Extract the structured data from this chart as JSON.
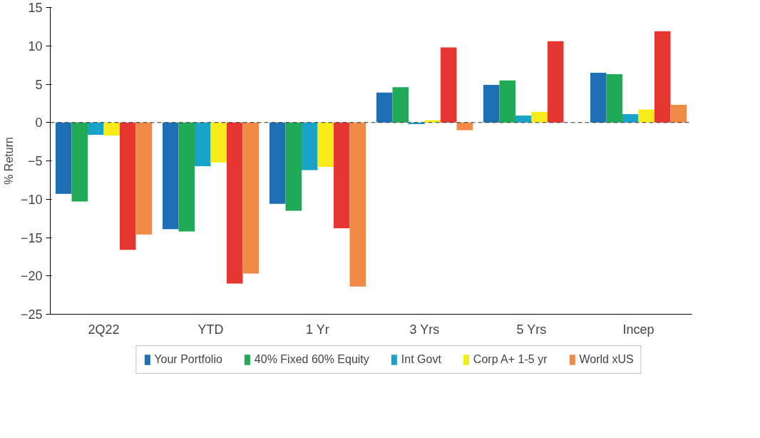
{
  "chart_data": {
    "type": "bar",
    "ylabel": "% Return",
    "categories": [
      "2Q22",
      "YTD",
      "1 Yr",
      "3 Yrs",
      "5 Yrs",
      "Incep"
    ],
    "series": [
      {
        "name": "Your Portfolio",
        "color": "#1f6fb5",
        "values": [
          -9.3,
          -13.9,
          -10.6,
          3.9,
          4.9,
          6.5
        ]
      },
      {
        "name": "40% Fixed 60% Equity",
        "color": "#20a956",
        "values": [
          -10.3,
          -14.2,
          -11.5,
          4.6,
          5.5,
          6.3
        ]
      },
      {
        "name": "Int Govt",
        "color": "#1aa3c8",
        "values": [
          -1.6,
          -5.7,
          -6.2,
          -0.2,
          0.9,
          1.1
        ]
      },
      {
        "name": "Corp A+ 1-5 yr",
        "color": "#f7ec1a",
        "values": [
          -1.7,
          -5.2,
          -5.8,
          0.3,
          1.4,
          1.7
        ]
      },
      {
        "color": "#e63632",
        "values": [
          -16.6,
          -21.0,
          -13.8,
          9.8,
          10.6,
          11.9
        ]
      },
      {
        "name": "World xUS",
        "color": "#f08a46",
        "values": [
          -14.6,
          -19.7,
          -21.4,
          -1.0,
          null,
          2.3
        ]
      }
    ],
    "ylim": [
      -25,
      15
    ],
    "yticks": [
      -25,
      -20,
      -15,
      -10,
      -5,
      0,
      5,
      10,
      15
    ],
    "ref_lines": [
      {
        "axis": "y",
        "value": 0,
        "color": "#333333",
        "line_style": "dashed"
      }
    ],
    "grid": false,
    "legend": "bottom"
  }
}
